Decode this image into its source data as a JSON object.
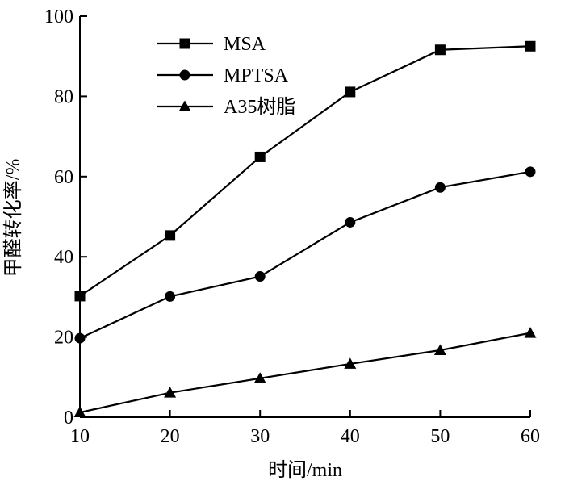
{
  "chart_data": {
    "type": "line",
    "title": "",
    "xlabel": "时间/min",
    "ylabel": "甲醛转化率/%",
    "x": [
      10,
      20,
      30,
      40,
      50,
      60
    ],
    "xlim": [
      10,
      60
    ],
    "ylim": [
      0,
      100
    ],
    "xticks": [
      "10",
      "20",
      "30",
      "40",
      "50",
      "60"
    ],
    "yticks": [
      "0",
      "20",
      "40",
      "60",
      "80",
      "100"
    ],
    "grid": false,
    "legend_position": "top-left",
    "series": [
      {
        "name": "MSA",
        "marker": "square",
        "values": [
          30.2,
          45.3,
          64.9,
          81.1,
          91.6,
          92.5
        ]
      },
      {
        "name": "MPTSA",
        "marker": "circle",
        "values": [
          19.7,
          30.1,
          35.1,
          48.6,
          57.3,
          61.2
        ]
      },
      {
        "name": "A35树脂",
        "marker": "triangle",
        "values": [
          1.2,
          6.1,
          9.7,
          13.3,
          16.7,
          21.0
        ]
      }
    ]
  }
}
